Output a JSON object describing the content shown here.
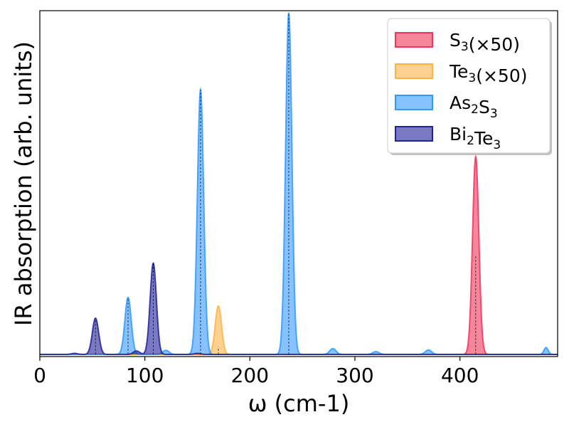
{
  "chart_data": {
    "type": "area",
    "xlabel": "ω (cm-1)",
    "ylabel": "IR absorption (arb. units)",
    "xlim": [
      0,
      493
    ],
    "ylim": [
      0,
      1.0
    ],
    "x_ticks": [
      0,
      100,
      200,
      300,
      400
    ],
    "x_tick_labels": [
      "0",
      "100",
      "200",
      "300",
      "400"
    ],
    "y_ticks_shown": false,
    "grid": false,
    "legend_position": "top-right",
    "series": [
      {
        "name_parts": [
          [
            "S",
            ""
          ],
          [
            "3",
            "sub"
          ],
          [
            "(×50)",
            ""
          ]
        ],
        "color": "#f0355a",
        "peaks": [
          {
            "x": 415,
            "height": 0.579,
            "width": 3.0,
            "marker_height": 0.292
          }
        ]
      },
      {
        "name_parts": [
          [
            "Te",
            ""
          ],
          [
            "3",
            "sub"
          ],
          [
            "(×50)",
            ""
          ]
        ],
        "color": "#ffb347",
        "peaks": [
          {
            "x": 170,
            "height": 0.142,
            "width": 3.0,
            "marker_height": 0.022
          }
        ]
      },
      {
        "name_parts": [
          [
            "As",
            ""
          ],
          [
            "2",
            "sub"
          ],
          [
            "S",
            ""
          ],
          [
            "3",
            "sub"
          ]
        ],
        "color": "#3399ff",
        "peaks": [
          {
            "x": 84,
            "height": 0.167,
            "width": 3.0,
            "marker_height": 0.167
          },
          {
            "x": 153,
            "height": 0.775,
            "width": 3.0,
            "marker_height": 0.775
          },
          {
            "x": 237,
            "height": 1.0,
            "width": 3.0,
            "marker_height": 1.0
          },
          {
            "x": 279,
            "height": 0.017,
            "width": 3.0,
            "marker_height": 0
          },
          {
            "x": 320,
            "height": 0.008,
            "width": 3.0,
            "marker_height": 0
          },
          {
            "x": 370,
            "height": 0.013,
            "width": 3.0,
            "marker_height": 0
          },
          {
            "x": 482,
            "height": 0.02,
            "width": 2.0,
            "marker_height": 0
          },
          {
            "x": 120,
            "height": 0.012,
            "width": 3.0,
            "marker_height": 0
          }
        ]
      },
      {
        "name_parts": [
          [
            "Bi",
            ""
          ],
          [
            "2",
            "sub"
          ],
          [
            "Te",
            ""
          ],
          [
            "3",
            "sub"
          ]
        ],
        "color": "#22229a",
        "peaks": [
          {
            "x": 53,
            "height": 0.106,
            "width": 3.0,
            "marker_height": 0.106
          },
          {
            "x": 108,
            "height": 0.267,
            "width": 3.0,
            "marker_height": 0.267
          },
          {
            "x": 33,
            "height": 0.003,
            "width": 3.0,
            "marker_height": 0
          },
          {
            "x": 92,
            "height": 0.01,
            "width": 3.0,
            "marker_height": 0
          },
          {
            "x": 150,
            "height": 0.003,
            "width": 3.0,
            "marker_height": 0
          }
        ]
      }
    ]
  }
}
